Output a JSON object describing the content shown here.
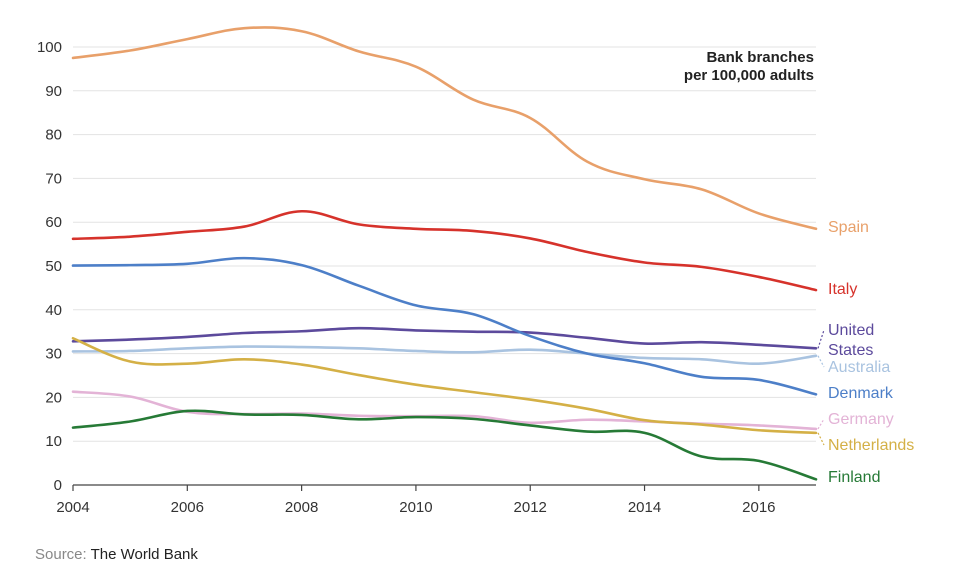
{
  "source": {
    "prefix": "Source:",
    "name": "The World Bank"
  },
  "chart_data": {
    "type": "line",
    "title_lines": [
      "Bank branches",
      "per 100,000 adults"
    ],
    "xlabel": "",
    "ylabel": "",
    "xlim": [
      2004,
      2017
    ],
    "ylim": [
      0,
      100
    ],
    "x_ticks": [
      2004,
      2006,
      2008,
      2010,
      2012,
      2014,
      2016
    ],
    "y_ticks": [
      0,
      10,
      20,
      30,
      40,
      50,
      60,
      70,
      80,
      90,
      100
    ],
    "grid": "horizontal",
    "legend": "direct labels at right end of lines",
    "x": [
      2004,
      2005,
      2006,
      2007,
      2008,
      2009,
      2010,
      2011,
      2012,
      2013,
      2014,
      2015,
      2016,
      2017
    ],
    "series": [
      {
        "name": "Spain",
        "label_lines": [
          "Spain"
        ],
        "color": "#E8A06A",
        "values": [
          97.5,
          99.2,
          101.8,
          104.3,
          103.6,
          99.0,
          95.5,
          88.0,
          83.8,
          73.8,
          69.8,
          67.5,
          62.0,
          58.5
        ]
      },
      {
        "name": "Italy",
        "label_lines": [
          "Italy"
        ],
        "color": "#D6322B",
        "values": [
          56.2,
          56.7,
          57.8,
          59.0,
          62.5,
          59.5,
          58.5,
          58.0,
          56.3,
          53.2,
          50.8,
          49.8,
          47.5,
          44.5
        ]
      },
      {
        "name": "United States",
        "label_lines": [
          "United",
          "States"
        ],
        "color": "#5C4A9C",
        "values": [
          32.8,
          33.2,
          33.8,
          34.7,
          35.1,
          35.8,
          35.3,
          35.0,
          34.8,
          33.6,
          32.3,
          32.6,
          32.0,
          31.2
        ]
      },
      {
        "name": "Australia",
        "label_lines": [
          "Australia"
        ],
        "color": "#A9C3E0",
        "values": [
          30.5,
          30.6,
          31.2,
          31.6,
          31.5,
          31.2,
          30.6,
          30.3,
          30.9,
          30.0,
          29.0,
          28.7,
          27.7,
          29.5
        ]
      },
      {
        "name": "Denmark",
        "label_lines": [
          "Denmark"
        ],
        "color": "#4D7FC8",
        "values": [
          50.1,
          50.2,
          50.5,
          51.8,
          50.2,
          45.5,
          41.0,
          39.0,
          34.0,
          30.0,
          27.8,
          24.7,
          24.0,
          20.7
        ]
      },
      {
        "name": "Germany",
        "label_lines": [
          "Germany"
        ],
        "color": "#E3B3D6",
        "values": [
          21.3,
          20.2,
          16.7,
          16.2,
          16.3,
          15.8,
          15.7,
          15.7,
          14.2,
          14.9,
          14.5,
          14.0,
          13.6,
          12.8
        ]
      },
      {
        "name": "Netherlands",
        "label_lines": [
          "Netherlands"
        ],
        "color": "#D4B046",
        "values": [
          33.5,
          28.2,
          27.7,
          28.7,
          27.5,
          25.1,
          22.9,
          21.2,
          19.5,
          17.4,
          14.8,
          13.8,
          12.5,
          11.9
        ]
      },
      {
        "name": "Finland",
        "label_lines": [
          "Finland"
        ],
        "color": "#267A36",
        "values": [
          13.1,
          14.5,
          16.9,
          16.1,
          16.0,
          15.0,
          15.5,
          15.1,
          13.6,
          12.2,
          11.9,
          6.5,
          5.5,
          1.3
        ]
      }
    ]
  }
}
